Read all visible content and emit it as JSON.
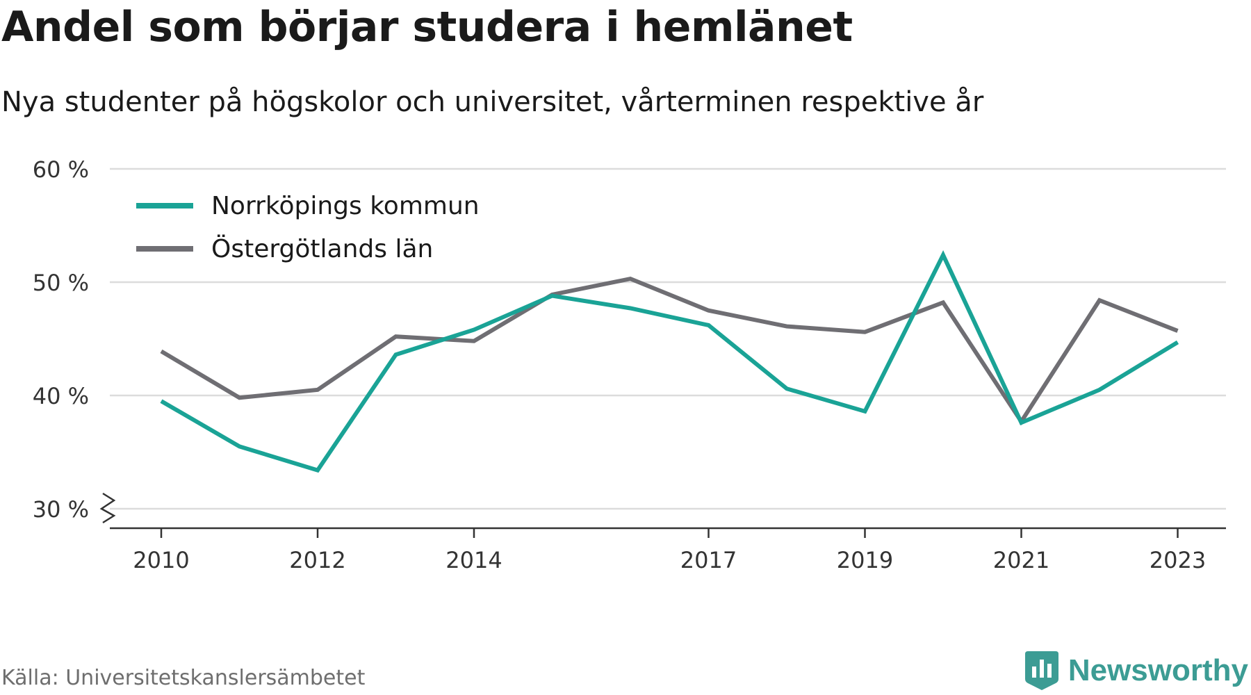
{
  "title": "Andel som börjar studera i hemlänet",
  "subtitle": "Nya studenter på högskolor och universitet, vårterminen respektive år",
  "source": "Källa: Universitetskanslersämbetet",
  "brand": {
    "name": "Newsworthy",
    "icon": "bar-chart-shield-icon",
    "color": "#3c9c94"
  },
  "chart_data": {
    "type": "line",
    "x": [
      2010,
      2011,
      2012,
      2013,
      2014,
      2015,
      2016,
      2017,
      2018,
      2019,
      2020,
      2021,
      2022,
      2023
    ],
    "xticks": [
      "2010",
      "2012",
      "2014",
      "2017",
      "2019",
      "2021",
      "2023"
    ],
    "yticks": [
      "30 %",
      "40 %",
      "50 %",
      "60 %"
    ],
    "ylim": [
      30,
      60
    ],
    "y_axis_break": true,
    "grid": true,
    "legend": "top-left",
    "xlabel": "",
    "ylabel": "",
    "series": [
      {
        "name": "Norrköpings kommun",
        "color": "#1aa396",
        "values": [
          39.5,
          35.5,
          33.4,
          43.6,
          45.8,
          48.8,
          47.7,
          46.2,
          40.6,
          38.6,
          52.4,
          37.6,
          40.5,
          44.7
        ]
      },
      {
        "name": "Östergötlands län",
        "color": "#6f6e73",
        "values": [
          43.9,
          39.8,
          40.5,
          45.2,
          44.8,
          48.9,
          50.3,
          47.5,
          46.1,
          45.6,
          48.2,
          37.7,
          48.4,
          45.7
        ]
      }
    ]
  }
}
